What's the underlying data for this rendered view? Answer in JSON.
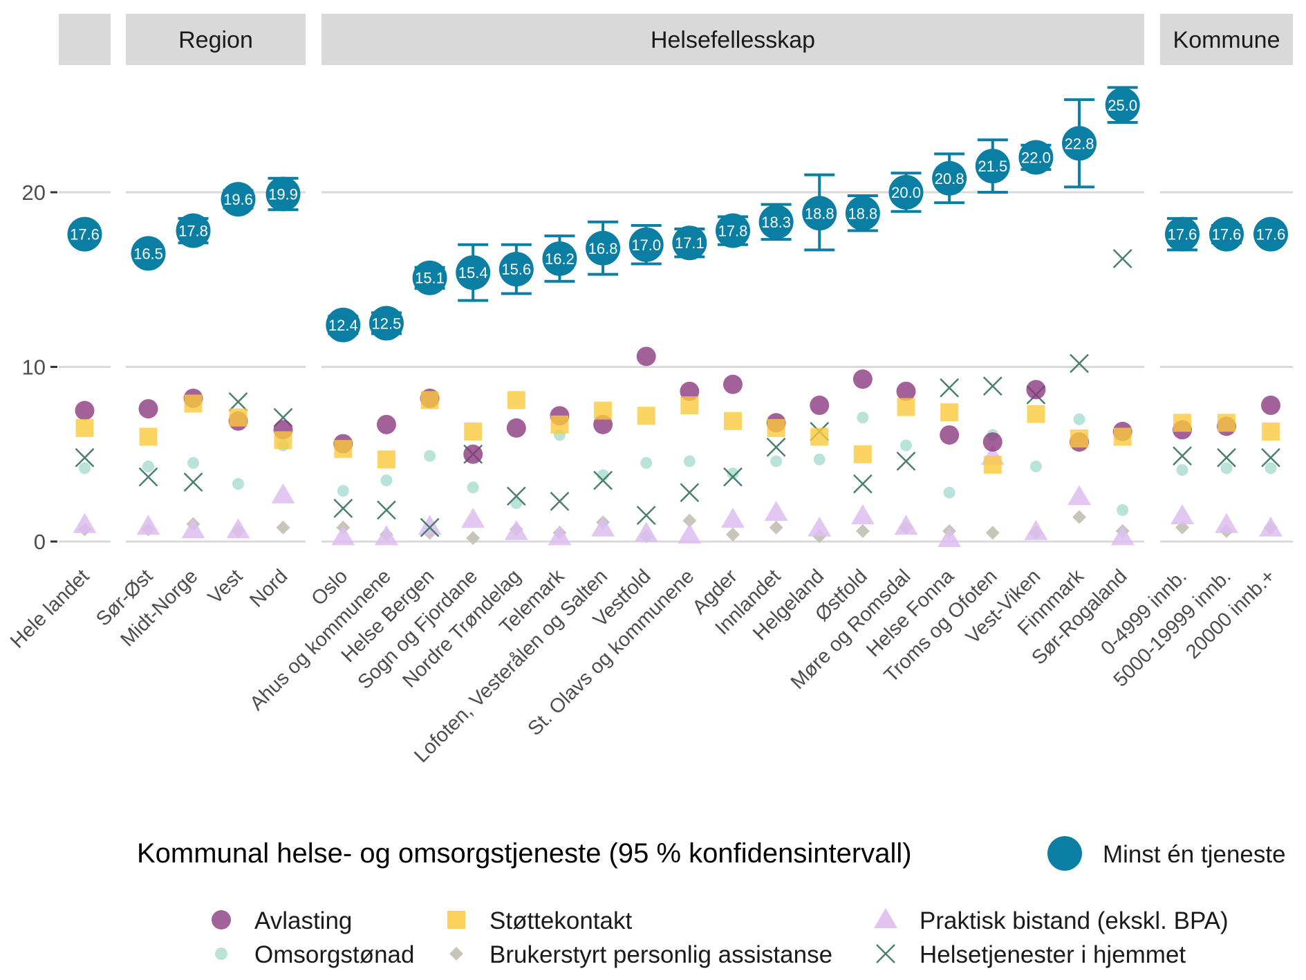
{
  "chart_data": {
    "type": "scatter",
    "ylim": [
      -1.5,
      27.5
    ],
    "yticks": [
      0,
      10,
      20
    ],
    "ytick_labels": [
      "0",
      "10",
      "20"
    ],
    "legend": {
      "title": "Kommunal helse- og omsorgstjeneste (95 % konfidensintervall)",
      "main_label": "Minst én tjeneste",
      "entries": {
        "avlasting": "Avlasting",
        "omsorgstonad": "Omsorgstønad",
        "stottekontakt": "Støttekontakt",
        "bpa": "Brukerstyrt personlig assistanse",
        "praktisk": "Praktisk bistand (ekskl. BPA)",
        "hjemmet": "Helsetjenester i hjemmet"
      }
    },
    "colors": {
      "main": "#0a7fa3",
      "avlasting": "#8b3a7e",
      "omsorgstonad": "#a8dccf",
      "stottekontakt": "#fbc93d",
      "bpa": "#c8c6b8",
      "praktisk": "#ddbdf0",
      "hjemmet": "#4a7f6f"
    },
    "panels": [
      {
        "strip": "",
        "categories": [
          {
            "name": "Hele landet",
            "main": 17.6,
            "lo": 17.2,
            "hi": 18.0,
            "label": "17.6",
            "avlasting": 7.5,
            "omsorgstonad": 4.2,
            "stottekontakt": 6.5,
            "bpa": 0.7,
            "praktisk": 1.0,
            "hjemmet": 4.8
          }
        ]
      },
      {
        "strip": "Region",
        "categories": [
          {
            "name": "Sør-Øst",
            "main": 16.5,
            "lo": 16.1,
            "hi": 16.9,
            "label": "16.5",
            "avlasting": 7.6,
            "omsorgstonad": 4.3,
            "stottekontakt": 6.0,
            "bpa": 0.7,
            "praktisk": 0.9,
            "hjemmet": 3.7
          },
          {
            "name": "Midt-Norge",
            "main": 17.8,
            "lo": 17.1,
            "hi": 18.5,
            "label": "17.8",
            "avlasting": 8.2,
            "omsorgstonad": 4.5,
            "stottekontakt": 7.9,
            "bpa": 1.0,
            "praktisk": 0.7,
            "hjemmet": 3.4
          },
          {
            "name": "Vest",
            "main": 19.6,
            "lo": 19.1,
            "hi": 20.1,
            "label": "19.6",
            "avlasting": 6.9,
            "omsorgstonad": 3.3,
            "stottekontakt": 7.1,
            "bpa": 0.6,
            "praktisk": 0.7,
            "hjemmet": 8.0
          },
          {
            "name": "Nord",
            "main": 19.9,
            "lo": 19.0,
            "hi": 20.8,
            "label": "19.9",
            "avlasting": 6.4,
            "omsorgstonad": 5.5,
            "stottekontakt": 5.8,
            "bpa": 0.8,
            "praktisk": 2.7,
            "hjemmet": 7.1
          }
        ]
      },
      {
        "strip": "Helsefellesskap",
        "categories": [
          {
            "name": "Oslo",
            "main": 12.4,
            "lo": 11.9,
            "hi": 12.9,
            "label": "12.4",
            "avlasting": 5.6,
            "omsorgstonad": 2.9,
            "stottekontakt": 5.3,
            "bpa": 0.8,
            "praktisk": 0.3,
            "hjemmet": 1.9
          },
          {
            "name": "Ahus og kommunene",
            "main": 12.5,
            "lo": 11.9,
            "hi": 13.1,
            "label": "12.5",
            "avlasting": 6.7,
            "omsorgstonad": 3.5,
            "stottekontakt": 4.7,
            "bpa": 0.4,
            "praktisk": 0.3,
            "hjemmet": 1.8
          },
          {
            "name": "Helse Bergen",
            "main": 15.1,
            "lo": 14.5,
            "hi": 15.7,
            "label": "15.1",
            "avlasting": 8.2,
            "omsorgstonad": 4.9,
            "stottekontakt": 8.1,
            "bpa": 0.5,
            "praktisk": 0.9,
            "hjemmet": 0.8
          },
          {
            "name": "Sogn og Fjordane",
            "main": 15.4,
            "lo": 13.8,
            "hi": 17.0,
            "label": "15.4",
            "avlasting": 5.0,
            "omsorgstonad": 3.1,
            "stottekontakt": 6.3,
            "bpa": 0.2,
            "praktisk": 1.3,
            "hjemmet": 5.0
          },
          {
            "name": "Nordre Trøndelag",
            "main": 15.6,
            "lo": 14.2,
            "hi": 17.0,
            "label": "15.6",
            "avlasting": 6.5,
            "omsorgstonad": 2.2,
            "stottekontakt": 8.1,
            "bpa": 0.7,
            "praktisk": 0.6,
            "hjemmet": 2.6
          },
          {
            "name": "Telemark",
            "main": 16.2,
            "lo": 14.9,
            "hi": 17.5,
            "label": "16.2",
            "avlasting": 7.2,
            "omsorgstonad": 6.1,
            "stottekontakt": 6.7,
            "bpa": 0.5,
            "praktisk": 0.3,
            "hjemmet": 2.3
          },
          {
            "name": "Lofoten, Vesterålen og Salten",
            "main": 16.8,
            "lo": 15.3,
            "hi": 18.3,
            "label": "16.8",
            "avlasting": 6.7,
            "omsorgstonad": 3.8,
            "stottekontakt": 7.5,
            "bpa": 1.1,
            "praktisk": 0.8,
            "hjemmet": 3.5
          },
          {
            "name": "Vestfold",
            "main": 17.0,
            "lo": 15.9,
            "hi": 18.1,
            "label": "17.0",
            "avlasting": 10.6,
            "omsorgstonad": 4.5,
            "stottekontakt": 7.2,
            "bpa": 0.3,
            "praktisk": 0.5,
            "hjemmet": 1.5
          },
          {
            "name": "St. Olavs og kommunene",
            "main": 17.1,
            "lo": 16.3,
            "hi": 17.9,
            "label": "17.1",
            "avlasting": 8.6,
            "omsorgstonad": 4.6,
            "stottekontakt": 7.8,
            "bpa": 1.2,
            "praktisk": 0.4,
            "hjemmet": 2.8
          },
          {
            "name": "Agder",
            "main": 17.8,
            "lo": 17.0,
            "hi": 18.6,
            "label": "17.8",
            "avlasting": 9.0,
            "omsorgstonad": 3.9,
            "stottekontakt": 6.9,
            "bpa": 0.4,
            "praktisk": 1.3,
            "hjemmet": 3.7
          },
          {
            "name": "Innlandet",
            "main": 18.3,
            "lo": 17.3,
            "hi": 19.3,
            "label": "18.3",
            "avlasting": 6.8,
            "omsorgstonad": 4.6,
            "stottekontakt": 6.5,
            "bpa": 0.8,
            "praktisk": 1.7,
            "hjemmet": 5.4
          },
          {
            "name": "Helgeland",
            "main": 18.8,
            "lo": 16.7,
            "hi": 21.0,
            "label": "18.8",
            "avlasting": 7.8,
            "omsorgstonad": 4.7,
            "stottekontakt": 6.0,
            "bpa": 0.3,
            "praktisk": 0.8,
            "hjemmet": 6.3
          },
          {
            "name": "Østfold",
            "main": 18.8,
            "lo": 17.8,
            "hi": 19.8,
            "label": "18.8",
            "avlasting": 9.3,
            "omsorgstonad": 7.1,
            "stottekontakt": 5.0,
            "bpa": 0.6,
            "praktisk": 1.5,
            "hjemmet": 3.3
          },
          {
            "name": "Møre og Romsdal",
            "main": 20.0,
            "lo": 18.9,
            "hi": 21.1,
            "label": "20.0",
            "avlasting": 8.6,
            "omsorgstonad": 5.5,
            "stottekontakt": 7.7,
            "bpa": 0.8,
            "praktisk": 0.9,
            "hjemmet": 4.6
          },
          {
            "name": "Helse Fonna",
            "main": 20.8,
            "lo": 19.4,
            "hi": 22.2,
            "label": "20.8",
            "avlasting": 6.1,
            "omsorgstonad": 2.8,
            "stottekontakt": 7.4,
            "bpa": 0.6,
            "praktisk": 0.2,
            "hjemmet": 8.8
          },
          {
            "name": "Troms og Ofoten",
            "main": 21.5,
            "lo": 20.0,
            "hi": 23.0,
            "label": "21.5",
            "avlasting": 5.7,
            "omsorgstonad": 6.1,
            "stottekontakt": 4.4,
            "bpa": 0.5,
            "praktisk": 4.9,
            "hjemmet": 8.9
          },
          {
            "name": "Vest-Viken",
            "main": 22.0,
            "lo": 21.3,
            "hi": 22.7,
            "label": "22.0",
            "avlasting": 8.7,
            "omsorgstonad": 4.3,
            "stottekontakt": 7.3,
            "bpa": 0.5,
            "praktisk": 0.6,
            "hjemmet": 8.4
          },
          {
            "name": "Finnmark",
            "main": 22.8,
            "lo": 20.3,
            "hi": 25.3,
            "label": "22.8",
            "avlasting": 5.7,
            "omsorgstonad": 7.0,
            "stottekontakt": 5.9,
            "bpa": 1.4,
            "praktisk": 2.6,
            "hjemmet": 10.2
          },
          {
            "name": "Sør-Rogaland",
            "main": 25.0,
            "lo": 24.0,
            "hi": 26.0,
            "label": "25.0",
            "avlasting": 6.3,
            "omsorgstonad": 1.8,
            "stottekontakt": 6.0,
            "bpa": 0.6,
            "praktisk": 0.3,
            "hjemmet": 16.2
          }
        ]
      },
      {
        "strip": "Kommune",
        "categories": [
          {
            "name": "0-4999 innb.",
            "main": 17.6,
            "lo": 16.7,
            "hi": 18.5,
            "label": "17.6",
            "avlasting": 6.4,
            "omsorgstonad": 4.1,
            "stottekontakt": 6.8,
            "bpa": 0.8,
            "praktisk": 1.5,
            "hjemmet": 4.9
          },
          {
            "name": "5000-19999 innb.",
            "main": 17.6,
            "lo": 17.1,
            "hi": 18.1,
            "label": "17.6",
            "avlasting": 6.6,
            "omsorgstonad": 4.2,
            "stottekontakt": 6.8,
            "bpa": 0.6,
            "praktisk": 1.0,
            "hjemmet": 4.8
          },
          {
            "name": "20000 innb.+",
            "main": 17.6,
            "lo": 17.3,
            "hi": 17.9,
            "label": "17.6",
            "avlasting": 7.8,
            "omsorgstonad": 4.2,
            "stottekontakt": 6.3,
            "bpa": 0.8,
            "praktisk": 0.8,
            "hjemmet": 4.8
          }
        ]
      }
    ]
  }
}
